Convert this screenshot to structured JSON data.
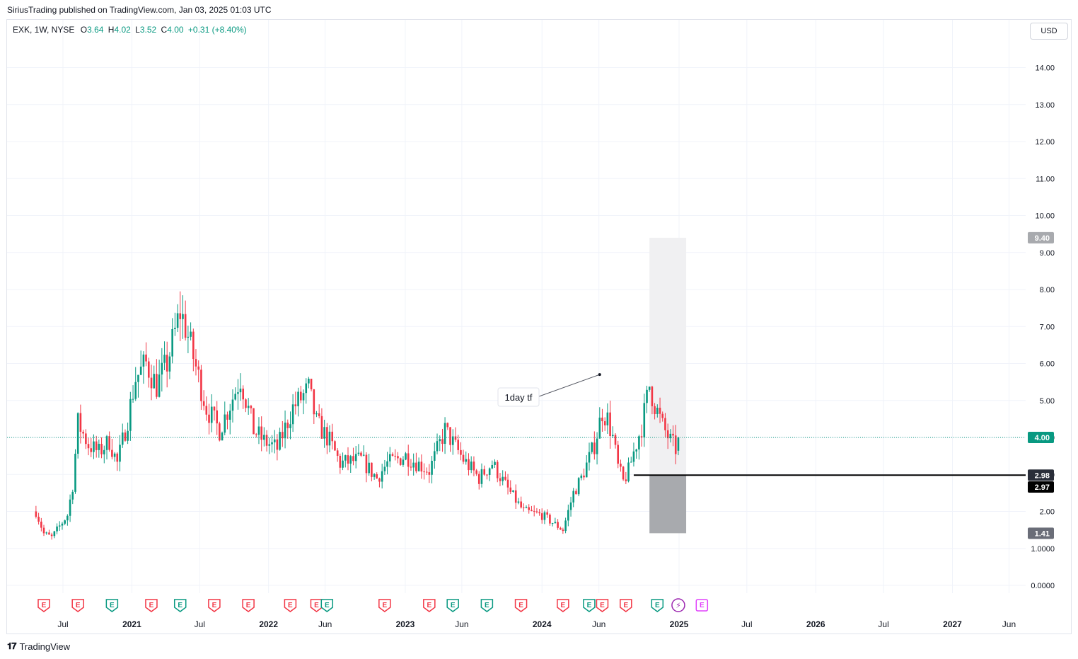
{
  "publish_line": "SiriusTrading published on TradingView.com, Jan 03, 2025 01:03 UTC",
  "legend": {
    "symbol": "EXK, 1W, NYSE",
    "open_label": "O",
    "open": "3.64",
    "high_label": "H",
    "high": "4.02",
    "low_label": "L",
    "low": "3.52",
    "close_label": "C",
    "close": "4.00",
    "change": "+0.31 (+8.40%)"
  },
  "currency_button": "USD",
  "footer_logo": "TradingView",
  "colors": {
    "up": "#089981",
    "down": "#f23645",
    "grid": "#f0f3fa",
    "last_price": "#089981",
    "range_box": "#f0f0f2",
    "range_box_low": "#a8aaae",
    "earnings_future": "#e040fb",
    "dividend": "#9c27b0"
  },
  "chart_data": {
    "type": "candlestick",
    "symbol": "EXK",
    "interval": "1W",
    "exchange": "NYSE",
    "y_axis_ticks": [
      "0.0000",
      "1.0000",
      "2.00",
      "3.00",
      "4.00",
      "5.00",
      "6.00",
      "7.00",
      "8.00",
      "9.00",
      "10.00",
      "11.00",
      "12.00",
      "13.00",
      "14.00"
    ],
    "y_axis_tick_values": [
      0,
      1,
      2,
      3,
      4,
      5,
      6,
      7,
      8,
      9,
      10,
      11,
      12,
      13,
      14
    ],
    "ylim": [
      -0.3,
      15
    ],
    "x_axis_labels": [
      {
        "label": "Jul",
        "date": "2020-07",
        "bold": false
      },
      {
        "label": "2021",
        "date": "2021-01",
        "bold": true
      },
      {
        "label": "Jul",
        "date": "2021-07",
        "bold": false
      },
      {
        "label": "2022",
        "date": "2022-01",
        "bold": true
      },
      {
        "label": "Jun",
        "date": "2022-06",
        "bold": false
      },
      {
        "label": "2023",
        "date": "2023-01",
        "bold": true
      },
      {
        "label": "Jun",
        "date": "2023-06",
        "bold": false
      },
      {
        "label": "2024",
        "date": "2024-01",
        "bold": true
      },
      {
        "label": "Jun",
        "date": "2024-06",
        "bold": false
      },
      {
        "label": "2025",
        "date": "2025-01",
        "bold": true
      },
      {
        "label": "Jul",
        "date": "2025-07",
        "bold": false
      },
      {
        "label": "2026",
        "date": "2026-01",
        "bold": true
      },
      {
        "label": "Jul",
        "date": "2026-07",
        "bold": false
      },
      {
        "label": "2027",
        "date": "2027-01",
        "bold": true
      },
      {
        "label": "Jun",
        "date": "2027-06",
        "bold": false
      }
    ],
    "last_price": {
      "value": 4.0,
      "label": "4.00"
    },
    "price_tags": [
      {
        "value": 9.4,
        "label": "9.40",
        "color": "#a8aaae",
        "text_color": "#ffffff"
      },
      {
        "value": 2.98,
        "label": "2.98",
        "color": "#2a2e39",
        "text_color": "#ffffff"
      },
      {
        "value": 2.97,
        "label": "2.97",
        "color": "#000000",
        "text_color": "#ffffff"
      },
      {
        "value": 1.41,
        "label": "1.41",
        "color": "#6a6d78",
        "text_color": "#ffffff"
      }
    ],
    "range_box": {
      "start_date": "2024-10-14",
      "end_date": "2025-01-20",
      "top": 9.4,
      "mid": 2.98,
      "bottom": 1.41
    },
    "horizontal_line": {
      "start_date": "2024-09-02",
      "value": 2.98
    },
    "annotation": {
      "text": "1day tf",
      "anchor_date": "2024-06-03",
      "anchor_value": 5.7
    },
    "events": [
      {
        "date": "2020-05-11",
        "type": "earnings",
        "result": "miss",
        "label": "E"
      },
      {
        "date": "2020-08-10",
        "type": "earnings",
        "result": "miss",
        "label": "E"
      },
      {
        "date": "2020-11-09",
        "type": "earnings",
        "result": "beat",
        "label": "E"
      },
      {
        "date": "2021-02-22",
        "type": "earnings",
        "result": "miss",
        "label": "E"
      },
      {
        "date": "2021-05-10",
        "type": "earnings",
        "result": "beat",
        "label": "E"
      },
      {
        "date": "2021-08-09",
        "type": "earnings",
        "result": "miss",
        "label": "E"
      },
      {
        "date": "2021-11-08",
        "type": "earnings",
        "result": "miss",
        "label": "E"
      },
      {
        "date": "2022-02-28",
        "type": "earnings",
        "result": "miss",
        "label": "E"
      },
      {
        "date": "2022-05-09",
        "type": "earnings",
        "result": "miss",
        "label": "E"
      },
      {
        "date": "2022-06-06",
        "type": "earnings",
        "result": "beat",
        "label": "E"
      },
      {
        "date": "2022-11-07",
        "type": "earnings",
        "result": "miss",
        "label": "E"
      },
      {
        "date": "2023-03-06",
        "type": "earnings",
        "result": "miss",
        "label": "E"
      },
      {
        "date": "2023-05-08",
        "type": "earnings",
        "result": "beat",
        "label": "E"
      },
      {
        "date": "2023-08-07",
        "type": "earnings",
        "result": "beat",
        "label": "E"
      },
      {
        "date": "2023-11-06",
        "type": "earnings",
        "result": "miss",
        "label": "E"
      },
      {
        "date": "2024-02-26",
        "type": "earnings",
        "result": "miss",
        "label": "E"
      },
      {
        "date": "2024-05-06",
        "type": "earnings",
        "result": "beat",
        "label": "E"
      },
      {
        "date": "2024-06-10",
        "type": "earnings",
        "result": "miss",
        "label": "E"
      },
      {
        "date": "2024-08-12",
        "type": "earnings",
        "result": "miss",
        "label": "E"
      },
      {
        "date": "2024-11-04",
        "type": "earnings",
        "result": "beat",
        "label": "E"
      },
      {
        "date": "2024-12-30",
        "type": "dividend",
        "result": "",
        "label": "⚡"
      },
      {
        "date": "2025-03-03",
        "type": "earnings",
        "result": "future",
        "label": "E"
      }
    ],
    "ohlc_anchor_points": [
      {
        "date": "2020-04-20",
        "close": 2.0
      },
      {
        "date": "2020-05-11",
        "close": 1.4
      },
      {
        "date": "2020-06-01",
        "close": 1.3
      },
      {
        "date": "2020-06-22",
        "close": 1.6
      },
      {
        "date": "2020-07-13",
        "close": 1.9
      },
      {
        "date": "2020-07-27",
        "close": 2.7
      },
      {
        "date": "2020-08-10",
        "close": 4.4
      },
      {
        "date": "2020-09-07",
        "close": 3.8
      },
      {
        "date": "2020-10-05",
        "close": 3.6
      },
      {
        "date": "2020-11-02",
        "close": 3.9
      },
      {
        "date": "2020-11-23",
        "close": 3.3
      },
      {
        "date": "2020-12-21",
        "close": 4.5
      },
      {
        "date": "2021-01-11",
        "close": 5.6
      },
      {
        "date": "2021-02-08",
        "close": 6.0
      },
      {
        "date": "2021-03-08",
        "close": 5.4
      },
      {
        "date": "2021-04-05",
        "close": 6.0
      },
      {
        "date": "2021-05-10",
        "close": 7.4
      },
      {
        "date": "2021-05-24",
        "close": 7.0
      },
      {
        "date": "2021-06-21",
        "close": 5.9
      },
      {
        "date": "2021-07-19",
        "close": 4.8
      },
      {
        "date": "2021-08-23",
        "close": 4.2
      },
      {
        "date": "2021-10-18",
        "close": 5.6
      },
      {
        "date": "2021-11-22",
        "close": 4.2
      },
      {
        "date": "2021-12-20",
        "close": 3.9
      },
      {
        "date": "2022-01-24",
        "close": 3.7
      },
      {
        "date": "2022-03-07",
        "close": 4.8
      },
      {
        "date": "2022-04-18",
        "close": 5.3
      },
      {
        "date": "2022-05-09",
        "close": 4.4
      },
      {
        "date": "2022-06-13",
        "close": 3.9
      },
      {
        "date": "2022-07-11",
        "close": 3.3
      },
      {
        "date": "2022-09-05",
        "close": 3.4
      },
      {
        "date": "2022-10-17",
        "close": 2.9
      },
      {
        "date": "2022-11-14",
        "close": 3.3
      },
      {
        "date": "2023-01-02",
        "close": 3.5
      },
      {
        "date": "2023-03-06",
        "close": 3.1
      },
      {
        "date": "2023-04-17",
        "close": 4.2
      },
      {
        "date": "2023-06-05",
        "close": 3.4
      },
      {
        "date": "2023-07-17",
        "close": 2.9
      },
      {
        "date": "2023-08-21",
        "close": 3.3
      },
      {
        "date": "2023-10-02",
        "close": 2.6
      },
      {
        "date": "2023-11-13",
        "close": 2.0
      },
      {
        "date": "2024-01-01",
        "close": 1.9
      },
      {
        "date": "2024-02-26",
        "close": 1.5
      },
      {
        "date": "2024-03-25",
        "close": 2.5
      },
      {
        "date": "2024-04-15",
        "close": 2.9
      },
      {
        "date": "2024-05-20",
        "close": 3.8
      },
      {
        "date": "2024-06-10",
        "close": 4.7
      },
      {
        "date": "2024-06-24",
        "close": 4.5
      },
      {
        "date": "2024-07-08",
        "close": 4.0
      },
      {
        "date": "2024-07-22",
        "close": 3.2
      },
      {
        "date": "2024-08-05",
        "close": 2.8
      },
      {
        "date": "2024-08-19",
        "close": 3.1
      },
      {
        "date": "2024-09-02",
        "close": 3.6
      },
      {
        "date": "2024-09-23",
        "close": 4.3
      },
      {
        "date": "2024-10-14",
        "close": 5.4
      },
      {
        "date": "2024-10-28",
        "close": 4.9
      },
      {
        "date": "2024-11-18",
        "close": 4.3
      },
      {
        "date": "2024-12-09",
        "close": 3.9
      },
      {
        "date": "2024-12-23",
        "close": 3.69
      },
      {
        "date": "2024-12-30",
        "open": 3.64,
        "high": 4.02,
        "low": 3.52,
        "close": 4.0
      }
    ]
  }
}
